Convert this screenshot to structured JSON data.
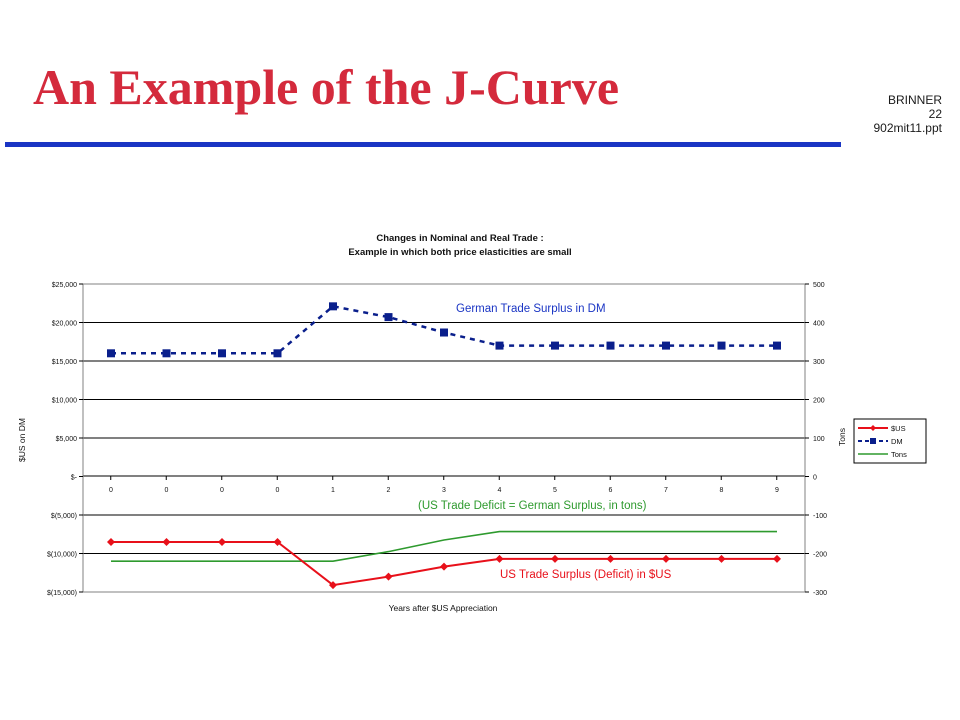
{
  "slide": {
    "title": "An Example of the J-Curve",
    "meta_author": "BRINNER",
    "meta_page": "22",
    "meta_file": "902mit11.ppt"
  },
  "colors": {
    "title": "#d42a3c",
    "rule": "#1a35c4",
    "usd": "#e8101a",
    "dm": "#0a1f8c",
    "tons": "#2e9a2e",
    "dm_label": "#1a35c4",
    "usd_label": "#e8101a",
    "tons_label": "#2e9a2e"
  },
  "chart_data": {
    "type": "line",
    "title_line1": "Changes in Nominal and Real Trade :",
    "title_line2": "Example in which both price elasticities are small",
    "xlabel": "Years after $US Appreciation",
    "ylabel_left": "$US on DM",
    "ylabel_right": "Tons",
    "categories": [
      "0",
      "0",
      "0",
      "0",
      "1",
      "2",
      "3",
      "4",
      "5",
      "6",
      "7",
      "8",
      "9"
    ],
    "ylim_left": [
      -15000,
      25000
    ],
    "ylim_right": [
      -300,
      500
    ],
    "left_ticks": [
      {
        "value": 25000,
        "label": "$25,000"
      },
      {
        "value": 20000,
        "label": "$20,000"
      },
      {
        "value": 15000,
        "label": "$15,000"
      },
      {
        "value": 10000,
        "label": "$10,000"
      },
      {
        "value": 5000,
        "label": "$5,000"
      },
      {
        "value": 0,
        "label": "$-"
      },
      {
        "value": -5000,
        "label": "$(5,000)"
      },
      {
        "value": -10000,
        "label": "$(10,000)"
      },
      {
        "value": -15000,
        "label": "$(15,000)"
      }
    ],
    "right_ticks": [
      {
        "value": 500,
        "label": "500"
      },
      {
        "value": 400,
        "label": "400"
      },
      {
        "value": 300,
        "label": "300"
      },
      {
        "value": 200,
        "label": "200"
      },
      {
        "value": 100,
        "label": "100"
      },
      {
        "value": 0,
        "label": "0"
      },
      {
        "value": -100,
        "label": "-100"
      },
      {
        "value": -200,
        "label": "-200"
      },
      {
        "value": -300,
        "label": "-300"
      }
    ],
    "grid": true,
    "series": [
      {
        "key": "usd",
        "name": "$US",
        "axis": "left",
        "marker": "diamond",
        "style": "solid",
        "values": [
          -8500,
          -8500,
          -8500,
          -8500,
          -14100,
          -13000,
          -11700,
          -10700,
          -10700,
          -10700,
          -10700,
          -10700,
          -10700
        ]
      },
      {
        "key": "dm",
        "name": "DM",
        "axis": "left",
        "marker": "square",
        "style": "dashed",
        "values": [
          16000,
          16000,
          16000,
          16000,
          22100,
          20700,
          18700,
          17000,
          17000,
          17000,
          17000,
          17000,
          17000
        ]
      },
      {
        "key": "tons",
        "name": "Tons",
        "axis": "right",
        "marker": "none",
        "style": "solid",
        "values": [
          -220,
          -220,
          -220,
          -220,
          -220,
          -195,
          -165,
          -143,
          -143,
          -143,
          -143,
          -143,
          -143
        ]
      }
    ],
    "annotations": {
      "dm": "German Trade Surplus in DM",
      "tons": "(US Trade Deficit = German Surplus,   in tons)",
      "usd": "US Trade Surplus (Deficit) in $US"
    },
    "legend_position": "right"
  }
}
